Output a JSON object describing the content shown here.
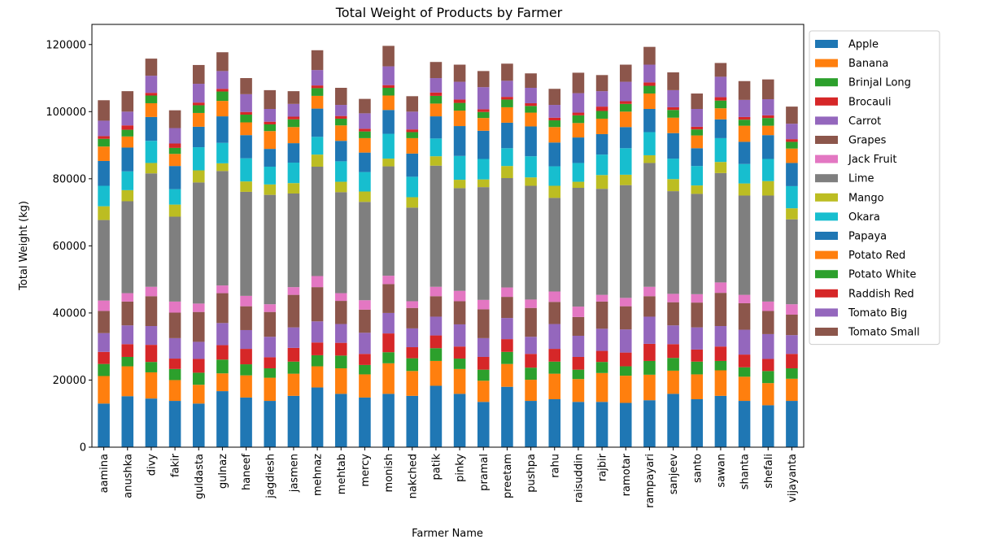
{
  "chart_data": {
    "type": "bar",
    "stacked": true,
    "title": "Total Weight of Products by Farmer",
    "xlabel": "Farmer Name",
    "ylabel": "Total Weight (kg)",
    "ylim": [
      0,
      126000
    ],
    "yticks": [
      0,
      20000,
      40000,
      60000,
      80000,
      100000,
      120000
    ],
    "ytick_labels": [
      "0",
      "20000",
      "40000",
      "60000",
      "80000",
      "100000",
      "120000"
    ],
    "grid": false,
    "legend_position": "outside-right-top",
    "categories": [
      "aamina",
      "anushka",
      "divy",
      "fakir",
      "guldasta",
      "gulnaz",
      "haneef",
      "jagdiesh",
      "jasmen",
      "mehnaz",
      "mehtab",
      "mercy",
      "monish",
      "nakched",
      "patik",
      "pinky",
      "pramal",
      "preetam",
      "pushpa",
      "rahu",
      "raisuddin",
      "rajbir",
      "ramotar",
      "rampayari",
      "sanjeev",
      "santo",
      "sawan",
      "shanta",
      "shefali",
      "vijayanta"
    ],
    "series": [
      {
        "name": "Apple",
        "color": "#1f77b4",
        "values": [
          13000,
          15200,
          14500,
          13800,
          13000,
          16700,
          14800,
          13800,
          15300,
          17800,
          15900,
          14800,
          15900,
          15300,
          18300,
          15900,
          13500,
          18000,
          13800,
          14300,
          13500,
          13500,
          13200,
          14000,
          15900,
          14300,
          15300,
          13800,
          12500,
          13800
        ]
      },
      {
        "name": "Banana",
        "color": "#ff7f0e",
        "values": [
          8200,
          8900,
          7800,
          6200,
          5600,
          5300,
          6600,
          6900,
          6600,
          6300,
          7600,
          6900,
          9100,
          7400,
          7400,
          7400,
          6300,
          6800,
          6300,
          7600,
          6800,
          8600,
          8100,
          7600,
          6900,
          7400,
          7600,
          7200,
          6600,
          6600
        ]
      },
      {
        "name": "Brinjal Long",
        "color": "#2ca02c",
        "values": [
          3600,
          2800,
          3100,
          3300,
          3600,
          4100,
          3300,
          2800,
          3600,
          3300,
          3800,
          2800,
          3300,
          3800,
          3800,
          3100,
          3300,
          3600,
          3600,
          3600,
          2800,
          3300,
          2800,
          4100,
          3800,
          3800,
          2800,
          2800,
          3600,
          3100
        ]
      },
      {
        "name": "Brocauli",
        "color": "#d62728",
        "values": [
          3600,
          3800,
          5100,
          3100,
          4100,
          4300,
          4600,
          3300,
          4100,
          3800,
          3800,
          3300,
          5600,
          3300,
          3800,
          3600,
          3800,
          3800,
          4100,
          3800,
          3800,
          3300,
          4100,
          5100,
          4100,
          3600,
          4300,
          3800,
          3600,
          4300
        ]
      },
      {
        "name": "Carrot",
        "color": "#9467bd",
        "values": [
          5600,
          5600,
          5600,
          6100,
          5100,
          6600,
          5600,
          6100,
          6100,
          6300,
          5600,
          6300,
          6100,
          5600,
          5600,
          6600,
          5600,
          6300,
          5100,
          7400,
          6300,
          6600,
          6900,
          8100,
          5600,
          6600,
          6100,
          7400,
          7400,
          5600
        ]
      },
      {
        "name": "Grapes",
        "color": "#8c564b",
        "values": [
          6600,
          7100,
          8900,
          7600,
          8900,
          8900,
          7100,
          7400,
          9700,
          10200,
          6900,
          6900,
          8600,
          6100,
          6100,
          6900,
          8600,
          6300,
          8600,
          6600,
          5600,
          8100,
          6900,
          6100,
          6900,
          7400,
          9900,
          7900,
          6900,
          6100
        ]
      },
      {
        "name": "Jack Fruit",
        "color": "#e377c2",
        "values": [
          3100,
          2500,
          2800,
          3300,
          2500,
          2300,
          3100,
          2300,
          2300,
          3300,
          2300,
          2800,
          2500,
          2000,
          2800,
          3100,
          2800,
          2800,
          2500,
          3100,
          3100,
          2000,
          2500,
          2800,
          2500,
          2500,
          3100,
          2500,
          2800,
          3100
        ]
      },
      {
        "name": "Lime",
        "color": "#7f7f7f",
        "values": [
          24000,
          27400,
          33800,
          25300,
          36100,
          34100,
          31000,
          32600,
          27900,
          32600,
          30100,
          29300,
          32600,
          27900,
          36100,
          30600,
          33600,
          32600,
          33900,
          27900,
          35400,
          31600,
          33600,
          36900,
          30600,
          29900,
          32600,
          29600,
          31600,
          25300
        ]
      },
      {
        "name": "Mango",
        "color": "#bcbd22",
        "values": [
          4100,
          3300,
          3100,
          3600,
          3600,
          2300,
          3100,
          3100,
          3100,
          3600,
          3100,
          3100,
          2300,
          3100,
          2800,
          2500,
          2300,
          3600,
          2500,
          3600,
          1800,
          4100,
          3100,
          2300,
          3600,
          2500,
          3300,
          3600,
          4300,
          3300
        ]
      },
      {
        "name": "Okara",
        "color": "#17becf",
        "values": [
          6100,
          5600,
          6600,
          4600,
          6900,
          6100,
          6900,
          5300,
          6100,
          5300,
          6100,
          5800,
          7400,
          6100,
          5300,
          7100,
          6100,
          5300,
          6300,
          5800,
          5600,
          6100,
          7900,
          6900,
          6100,
          5800,
          7100,
          5800,
          6600,
          6600
        ]
      },
      {
        "name": "Papaya",
        "color": "#1f77b4",
        "values": [
          7400,
          7100,
          7100,
          6900,
          6100,
          7900,
          6900,
          5300,
          5800,
          8400,
          6100,
          5800,
          7100,
          6900,
          6600,
          8900,
          8400,
          7600,
          8900,
          7100,
          7600,
          6100,
          6300,
          6900,
          7600,
          5300,
          5600,
          6600,
          7100,
          6900
        ]
      },
      {
        "name": "Potato Red",
        "color": "#ff7f0e",
        "values": [
          4300,
          3300,
          4100,
          3600,
          4100,
          4600,
          3800,
          5300,
          4800,
          3800,
          4600,
          4300,
          4300,
          4600,
          3800,
          4600,
          3800,
          4600,
          4100,
          4600,
          4300,
          4600,
          4600,
          4600,
          4600,
          3800,
          3300,
          4800,
          2800,
          4300
        ]
      },
      {
        "name": "Potato White",
        "color": "#2ca02c",
        "values": [
          2300,
          2000,
          2300,
          1800,
          2300,
          2800,
          2300,
          2000,
          2300,
          2300,
          2000,
          2000,
          2300,
          1800,
          2300,
          2300,
          1800,
          2300,
          2000,
          2000,
          2300,
          2300,
          2300,
          2300,
          2300,
          1800,
          2300,
          1800,
          2300,
          2000
        ]
      },
      {
        "name": "Raddish Red",
        "color": "#d62728",
        "values": [
          800,
          1300,
          800,
          1300,
          800,
          800,
          800,
          800,
          800,
          800,
          800,
          800,
          800,
          800,
          1000,
          1000,
          800,
          800,
          800,
          800,
          800,
          1300,
          800,
          1000,
          800,
          800,
          1000,
          800,
          800,
          800
        ]
      },
      {
        "name": "Tomato Big",
        "color": "#9467bd",
        "values": [
          4600,
          4100,
          5100,
          4600,
          5600,
          5300,
          5300,
          3800,
          3800,
          4600,
          3300,
          4600,
          5600,
          5300,
          4300,
          5300,
          6600,
          4800,
          4600,
          3800,
          5800,
          4600,
          5800,
          5300,
          5100,
          5300,
          6100,
          5100,
          4800,
          4600
        ]
      },
      {
        "name": "Tomato Small",
        "color": "#8c564b",
        "values": [
          6100,
          6100,
          5100,
          5300,
          5600,
          5600,
          4800,
          5600,
          3800,
          5900,
          5100,
          4300,
          6100,
          4600,
          4800,
          5100,
          4800,
          5100,
          4300,
          4800,
          6100,
          4800,
          5100,
          5300,
          5300,
          4600,
          4100,
          5600,
          5900,
          5100
        ]
      }
    ]
  }
}
